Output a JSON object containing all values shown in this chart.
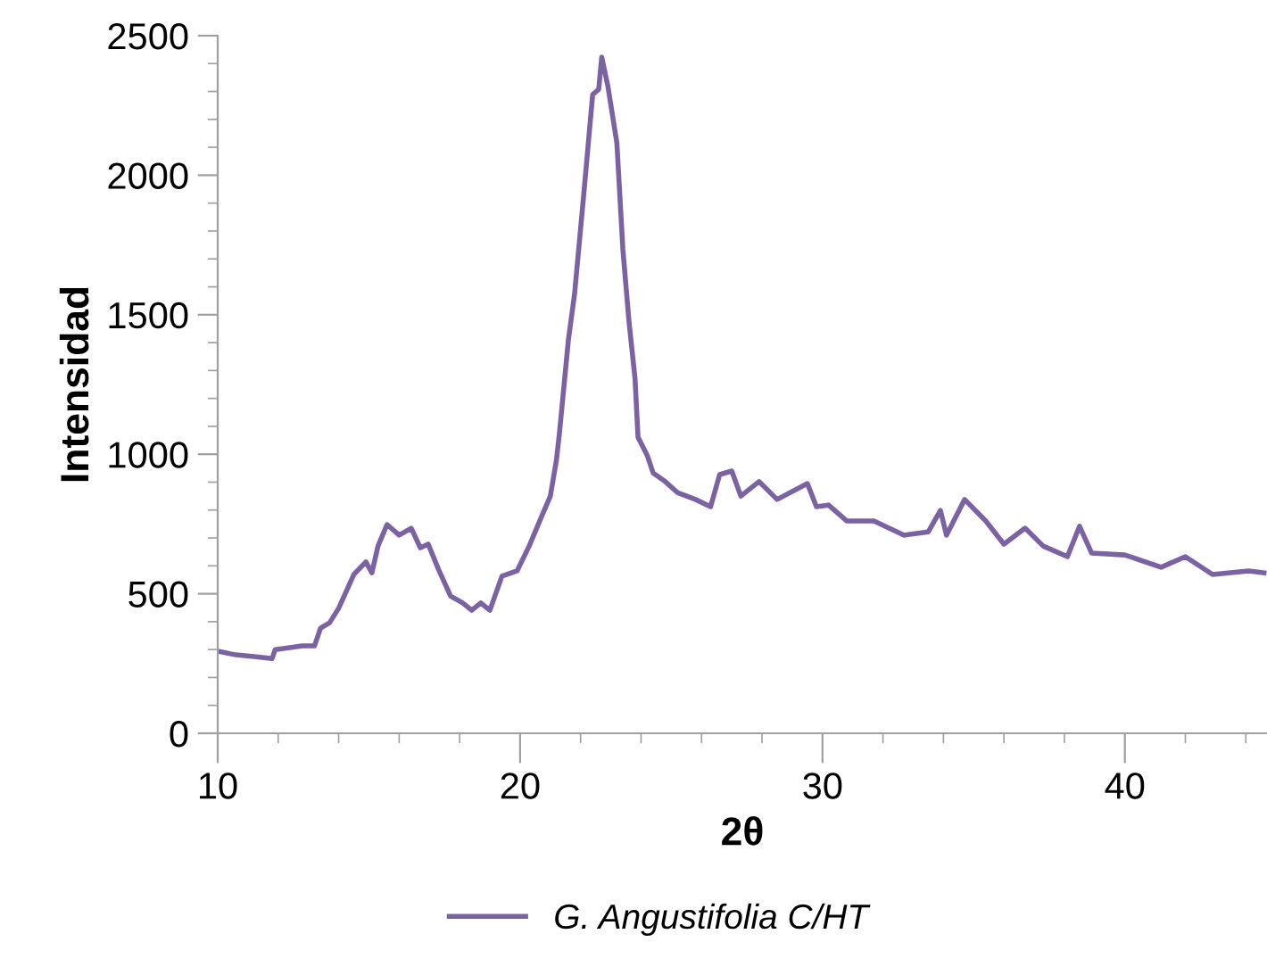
{
  "chart_data": {
    "type": "line",
    "xlabel": "2θ",
    "ylabel": "Intensidad",
    "xlim": [
      10,
      44.7
    ],
    "xticks": [
      10,
      20,
      30,
      40
    ],
    "ylim": [
      0,
      2500
    ],
    "yticks": [
      0,
      500,
      1000,
      1500,
      2000,
      2500
    ],
    "grid": false,
    "legend": "bottom",
    "marker": "none",
    "line_style": "solid",
    "series": [
      {
        "name": "G. Angustifolia C/HT",
        "color": "#7b62a3",
        "x": [
          10,
          10.6,
          11.2,
          11.8,
          11.9,
          12.8,
          13.2,
          13.4,
          13.7,
          14.0,
          14.5,
          14.9,
          15.1,
          15.3,
          15.6,
          16.0,
          16.4,
          16.7,
          16.96,
          17.3,
          17.7,
          18.1,
          18.4,
          18.7,
          19.0,
          19.4,
          19.9,
          20.3,
          20.7,
          21.0,
          21.2,
          21.3,
          21.6,
          21.8,
          22.1,
          22.4,
          22.6,
          22.7,
          22.9,
          23.2,
          23.4,
          23.6,
          23.8,
          23.9,
          24.2,
          24.4,
          24.8,
          25.2,
          25.8,
          26.3,
          26.6,
          27.0,
          27.3,
          27.9,
          28.5,
          29.5,
          29.8,
          30.2,
          30.8,
          31.7,
          32.7,
          33.5,
          33.9,
          34.1,
          34.7,
          35.4,
          36.0,
          36.7,
          37.3,
          38.1,
          38.5,
          38.9,
          40.0,
          41.2,
          42.0,
          42.9,
          44.1,
          44.6
        ],
        "values": [
          294,
          281,
          275,
          268,
          300,
          313,
          313,
          377,
          396,
          448,
          569,
          614,
          575,
          671,
          748,
          710,
          735,
          665,
          678,
          588,
          492,
          467,
          441,
          467,
          441,
          563,
          582,
          671,
          774,
          850,
          978,
          1074,
          1413,
          1573,
          1925,
          2289,
          2308,
          2423,
          2321,
          2116,
          1733,
          1477,
          1272,
          1061,
          997,
          933,
          902,
          863,
          838,
          812,
          927,
          940,
          850,
          902,
          838,
          895,
          812,
          818,
          761,
          761,
          710,
          722,
          799,
          710,
          838,
          761,
          678,
          735,
          671,
          633,
          742,
          646,
          639,
          595,
          633,
          569,
          582,
          575
        ]
      }
    ]
  }
}
